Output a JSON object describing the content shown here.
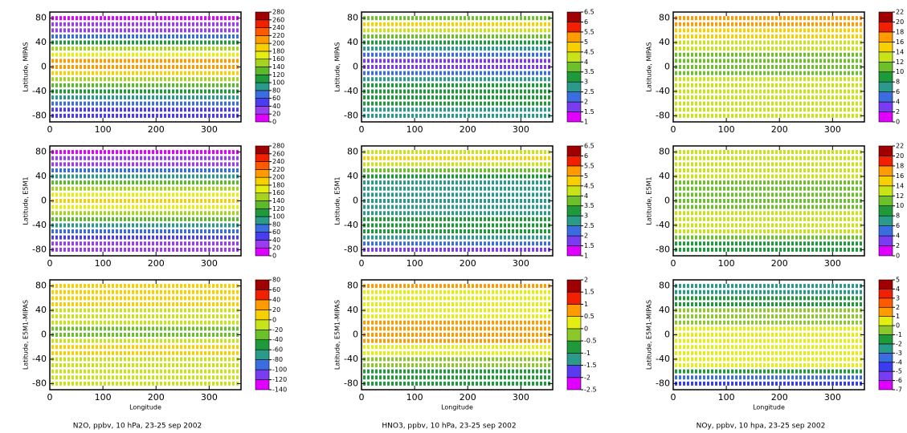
{
  "chart_data": [
    {
      "type": "heatmap",
      "ylabel": "Latitude, MIPAS",
      "xlim": [
        0,
        360
      ],
      "xticks": [
        0,
        100,
        200,
        300
      ],
      "ylim": [
        -90,
        90
      ],
      "yticks": [
        -80,
        -40,
        0,
        40,
        80
      ],
      "lat": [
        -80,
        -70,
        -60,
        -50,
        -40,
        -30,
        -20,
        -10,
        0,
        10,
        20,
        30,
        40,
        50,
        60,
        70,
        80
      ],
      "values": [
        40,
        40,
        60,
        80,
        100,
        120,
        150,
        180,
        210,
        200,
        170,
        140,
        100,
        60,
        30,
        20,
        10
      ],
      "cticks": [
        0,
        20,
        40,
        60,
        80,
        100,
        120,
        140,
        160,
        180,
        200,
        220,
        240,
        260,
        280
      ],
      "colors": [
        "#e000ff",
        "#9a3cf0",
        "#4a3cf0",
        "#3a6ee0",
        "#2a9a8a",
        "#1e9a3a",
        "#5cba2a",
        "#a6d41e",
        "#e4ee10",
        "#f6d000",
        "#ff9a00",
        "#ff5a00",
        "#f02000",
        "#a00000"
      ]
    },
    {
      "type": "heatmap",
      "ylabel": "Latitude, MIPAS",
      "xlim": [
        0,
        360
      ],
      "xticks": [
        0,
        100,
        200,
        300
      ],
      "ylim": [
        -90,
        90
      ],
      "yticks": [
        -80,
        -40,
        0,
        40,
        80
      ],
      "lat": [
        -80,
        -70,
        -60,
        -50,
        -40,
        -30,
        -20,
        -10,
        0,
        10,
        20,
        30,
        40,
        50,
        60,
        70,
        80
      ],
      "values": [
        2.5,
        2.8,
        3.2,
        3.3,
        3.3,
        3,
        2.5,
        2,
        1.8,
        1.8,
        2,
        2.5,
        3,
        3.5,
        4,
        4.5,
        3.5
      ],
      "cticks": [
        1,
        1.5,
        2,
        2.5,
        3,
        3.5,
        4,
        4.5,
        5,
        5.5,
        6,
        6.5
      ],
      "colors": [
        "#e000ff",
        "#7a3cf0",
        "#3a6ee0",
        "#2a9a8a",
        "#1e9a3a",
        "#6cc02a",
        "#c8e418",
        "#f6d000",
        "#ff9a00",
        "#f02000",
        "#a00000"
      ]
    },
    {
      "type": "heatmap",
      "ylabel": "Latitude, MIPAS",
      "xlim": [
        0,
        360
      ],
      "xticks": [
        0,
        100,
        200,
        300
      ],
      "ylim": [
        -90,
        90
      ],
      "yticks": [
        -80,
        -40,
        0,
        40,
        80
      ],
      "lat": [
        -80,
        -70,
        -60,
        -50,
        -40,
        -30,
        -20,
        -10,
        0,
        10,
        20,
        30,
        40,
        50,
        60,
        70,
        80
      ],
      "values": [
        13,
        12,
        13,
        13,
        13,
        13,
        12,
        11,
        10,
        10,
        11,
        12,
        13,
        14,
        15,
        16,
        16
      ],
      "cticks": [
        0,
        2,
        4,
        6,
        8,
        10,
        12,
        14,
        16,
        18,
        20,
        22
      ],
      "colors": [
        "#e000ff",
        "#7a3cf0",
        "#3a6ee0",
        "#2a9a8a",
        "#1e9a3a",
        "#6cc02a",
        "#c8e418",
        "#f6d000",
        "#ff9a00",
        "#f02000",
        "#a00000"
      ]
    },
    {
      "type": "heatmap",
      "ylabel": "Latitude, E5M1",
      "xlim": [
        0,
        360
      ],
      "xticks": [
        0,
        100,
        200,
        300
      ],
      "ylim": [
        -90,
        90
      ],
      "yticks": [
        -80,
        -40,
        0,
        40,
        80
      ],
      "lat": [
        -80,
        -70,
        -60,
        -50,
        -40,
        -30,
        -20,
        -10,
        0,
        10,
        20,
        30,
        40,
        50,
        60,
        70,
        80
      ],
      "values": [
        20,
        20,
        40,
        60,
        90,
        120,
        150,
        170,
        180,
        170,
        150,
        120,
        90,
        60,
        30,
        20,
        10
      ],
      "cticks": [
        0,
        20,
        40,
        60,
        80,
        100,
        120,
        140,
        160,
        180,
        200,
        220,
        240,
        260,
        280
      ],
      "colors": [
        "#e000ff",
        "#9a3cf0",
        "#4a3cf0",
        "#3a6ee0",
        "#2a9a8a",
        "#1e9a3a",
        "#5cba2a",
        "#a6d41e",
        "#e4ee10",
        "#f6d000",
        "#ff9a00",
        "#ff5a00",
        "#f02000",
        "#a00000"
      ]
    },
    {
      "type": "heatmap",
      "ylabel": "Latitude, E5M1",
      "xlim": [
        0,
        360
      ],
      "xticks": [
        0,
        100,
        200,
        300
      ],
      "ylim": [
        -90,
        90
      ],
      "yticks": [
        -80,
        -40,
        0,
        40,
        80
      ],
      "lat": [
        -80,
        -70,
        -60,
        -50,
        -40,
        -30,
        -20,
        -10,
        0,
        10,
        20,
        30,
        40,
        50,
        60,
        70,
        80
      ],
      "values": [
        1.8,
        2,
        2.5,
        3,
        3.2,
        3,
        2.8,
        2.6,
        2.5,
        2.5,
        2.6,
        2.8,
        3.2,
        3.5,
        4,
        4.5,
        4
      ],
      "cticks": [
        1,
        1.5,
        2,
        2.5,
        3,
        3.5,
        4,
        4.5,
        5,
        5.5,
        6,
        6.5
      ],
      "colors": [
        "#e000ff",
        "#7a3cf0",
        "#3a6ee0",
        "#2a9a8a",
        "#1e9a3a",
        "#6cc02a",
        "#c8e418",
        "#f6d000",
        "#ff9a00",
        "#f02000",
        "#a00000"
      ]
    },
    {
      "type": "heatmap",
      "ylabel": "Latitude, E5M1",
      "xlim": [
        0,
        360
      ],
      "xticks": [
        0,
        100,
        200,
        300
      ],
      "ylim": [
        -90,
        90
      ],
      "yticks": [
        -80,
        -40,
        0,
        40,
        80
      ],
      "lat": [
        -80,
        -70,
        -60,
        -50,
        -40,
        -30,
        -20,
        -10,
        0,
        10,
        20,
        30,
        40,
        50,
        60,
        70,
        80
      ],
      "values": [
        8,
        8,
        11,
        13,
        13.5,
        13,
        12,
        11,
        10,
        10,
        10.5,
        11,
        12,
        12.5,
        13,
        13,
        13
      ],
      "cticks": [
        0,
        2,
        4,
        6,
        8,
        10,
        12,
        14,
        16,
        18,
        20,
        22
      ],
      "colors": [
        "#e000ff",
        "#7a3cf0",
        "#3a6ee0",
        "#2a9a8a",
        "#1e9a3a",
        "#6cc02a",
        "#c8e418",
        "#f6d000",
        "#ff9a00",
        "#f02000",
        "#a00000"
      ]
    },
    {
      "type": "heatmap",
      "ylabel": "Latitude, E5M1-MIPAS",
      "xlabel": "Longitude",
      "xlim": [
        0,
        360
      ],
      "xticks": [
        0,
        100,
        200,
        300
      ],
      "ylim": [
        -90,
        90
      ],
      "yticks": [
        -80,
        -40,
        0,
        40,
        80
      ],
      "lat": [
        -80,
        -70,
        -60,
        -50,
        -40,
        -30,
        -20,
        -10,
        0,
        10,
        20,
        30,
        40,
        50,
        60,
        70,
        80
      ],
      "values": [
        -20,
        -20,
        -20,
        -20,
        -10,
        0,
        0,
        -10,
        -30,
        -30,
        -20,
        -20,
        -10,
        0,
        0,
        0,
        0
      ],
      "cticks": [
        -140,
        -120,
        -100,
        -80,
        -60,
        -40,
        -20,
        0,
        20,
        40,
        60,
        80
      ],
      "colors": [
        "#e000ff",
        "#7a3cf0",
        "#3a6ee0",
        "#2a9a8a",
        "#1e9a3a",
        "#6cc02a",
        "#c8e418",
        "#f6d000",
        "#ff9a00",
        "#f02000",
        "#a00000"
      ]
    },
    {
      "type": "heatmap",
      "ylabel": "Latitude, E5M1-MIPAS",
      "xlabel": "Longitude",
      "xlim": [
        0,
        360
      ],
      "xticks": [
        0,
        100,
        200,
        300
      ],
      "ylim": [
        -90,
        90
      ],
      "yticks": [
        -80,
        -40,
        0,
        40,
        80
      ],
      "lat": [
        -80,
        -70,
        -60,
        -50,
        -40,
        -30,
        -20,
        -10,
        0,
        10,
        20,
        30,
        40,
        50,
        60,
        70,
        80
      ],
      "values": [
        -0.7,
        -0.8,
        -0.7,
        -0.3,
        -0.1,
        0,
        0.3,
        0.6,
        0.7,
        0.7,
        0.6,
        0.3,
        0.2,
        0,
        0,
        0,
        0.5
      ],
      "cticks": [
        -2.5,
        -2,
        -1.5,
        -1,
        -0.5,
        0,
        0.5,
        1,
        1.5,
        2
      ],
      "colors": [
        "#e000ff",
        "#5a3cf0",
        "#2a9a8a",
        "#1e9a3a",
        "#8cc82a",
        "#e4ee10",
        "#ff9a00",
        "#f02000",
        "#a00000"
      ]
    },
    {
      "type": "heatmap",
      "ylabel": "Latitude, E5M1-MIPAS",
      "xlabel": "Longitude",
      "xlim": [
        0,
        360
      ],
      "xticks": [
        0,
        100,
        200,
        300
      ],
      "ylim": [
        -90,
        90
      ],
      "yticks": [
        -80,
        -40,
        0,
        40,
        80
      ],
      "lat": [
        -80,
        -70,
        -60,
        -50,
        -40,
        -30,
        -20,
        -10,
        0,
        10,
        20,
        30,
        40,
        50,
        60,
        70,
        80
      ],
      "values": [
        -5,
        -4,
        -2,
        0,
        0.5,
        0,
        0,
        0,
        0,
        0,
        -0.5,
        -1,
        -1,
        -1.5,
        -2,
        -3,
        -3
      ],
      "cticks": [
        -7,
        -6,
        -5,
        -4,
        -3,
        -2,
        -1,
        0,
        1,
        2,
        3,
        4,
        5
      ],
      "colors": [
        "#e000ff",
        "#7a3cf0",
        "#3a3cf0",
        "#3a6ee0",
        "#2a9a8a",
        "#1e9a3a",
        "#8cc82a",
        "#e4ee10",
        "#ff9a00",
        "#ff5a00",
        "#f02000",
        "#a00000"
      ]
    }
  ],
  "captions": [
    "N2O, ppbv, 10 hPa, 23-25 sep 2002",
    "HNO3, ppbv, 10 hPa, 23-25 sep 2002",
    "NOy, ppbv, 10 hpa, 23-25 sep 2002"
  ]
}
